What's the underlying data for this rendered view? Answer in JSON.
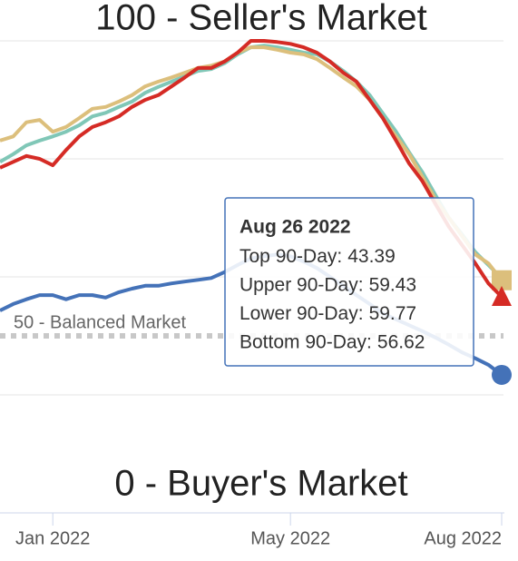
{
  "chart_data": {
    "type": "line",
    "annotations": [
      "100 - Seller's Market",
      "0 - Buyer's Market"
    ],
    "plot_lines": [
      {
        "value": 50,
        "label": "50 - Balanced Market"
      }
    ],
    "categories": [
      null,
      null,
      null,
      null,
      "Jan 2022",
      null,
      null,
      null,
      null,
      null,
      null,
      null,
      null,
      null,
      null,
      null,
      null,
      null,
      null,
      null,
      null,
      null,
      "May 2022",
      null,
      null,
      null,
      null,
      null,
      null,
      null,
      null,
      null,
      null,
      null,
      null,
      null,
      null,
      null,
      "Aug 2022"
    ],
    "ylim": [
      20,
      100
    ],
    "yticks": [
      40,
      60,
      80,
      100
    ],
    "grid": true,
    "series": [
      {
        "name": "Top 90-Day:",
        "color": "#4472b8",
        "marker": "circle",
        "values": [
          54.3,
          55.4,
          56.2,
          56.9,
          56.9,
          56.2,
          56.9,
          56.9,
          56.5,
          57.4,
          58.0,
          58.5,
          58.5,
          58.9,
          59.2,
          59.5,
          59.8,
          60.8,
          62.0,
          63.1,
          63.5,
          63.8,
          63.5,
          62.6,
          61.5,
          60.0,
          58.5,
          56.9,
          55.4,
          53.8,
          52.8,
          51.8,
          50.8,
          49.7,
          48.5,
          47.2,
          46.2,
          45.1,
          43.39
        ]
      },
      {
        "name": "Upper 90-Day:",
        "color": "#dcbf7c",
        "marker": "square",
        "values": [
          83.1,
          83.8,
          86.2,
          86.6,
          84.6,
          85.4,
          86.9,
          88.5,
          88.8,
          89.7,
          90.8,
          92.3,
          93.1,
          93.8,
          94.6,
          95.4,
          95.8,
          96.5,
          98.0,
          98.9,
          98.9,
          98.5,
          98.0,
          97.7,
          96.9,
          95.4,
          93.8,
          92.3,
          90.0,
          86.9,
          83.8,
          80.8,
          76.9,
          73.1,
          70.0,
          66.9,
          63.8,
          62.3,
          59.43
        ]
      },
      {
        "name": "Lower 90-Day:",
        "color": "#80c7b7",
        "values": [
          79.5,
          80.8,
          82.3,
          83.1,
          83.8,
          84.6,
          85.7,
          87.2,
          87.8,
          88.8,
          89.7,
          91.2,
          92.2,
          93.1,
          94.0,
          94.9,
          95.2,
          96.2,
          97.7,
          98.9,
          99.2,
          98.9,
          98.5,
          98.0,
          97.7,
          96.5,
          94.9,
          93.1,
          90.8,
          87.7,
          84.6,
          81.1,
          77.7,
          73.8,
          70.0,
          67.2,
          64.2,
          62.0,
          59.77
        ]
      },
      {
        "name": "Bottom 90-Day:",
        "color": "#d52b25",
        "marker": "triangle",
        "values": [
          78.5,
          79.5,
          80.5,
          80.0,
          78.9,
          81.5,
          83.8,
          85.4,
          86.2,
          87.2,
          88.8,
          90.0,
          90.8,
          92.3,
          93.8,
          95.4,
          95.4,
          96.5,
          98.0,
          100.0,
          100.0,
          99.8,
          99.5,
          98.9,
          98.0,
          96.5,
          94.6,
          93.1,
          90.0,
          86.9,
          83.1,
          79.2,
          76.2,
          72.3,
          68.5,
          65.4,
          62.3,
          58.9,
          56.62
        ]
      }
    ],
    "tooltip_title": "Aug 26 2022"
  }
}
